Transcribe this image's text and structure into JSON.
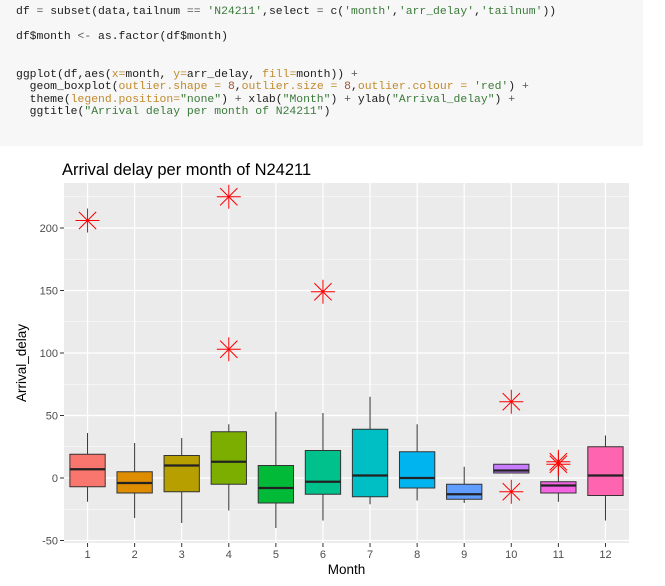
{
  "code": {
    "lines": [
      [
        {
          "t": "df ",
          "c": "kw"
        },
        {
          "t": "=",
          "c": "op"
        },
        {
          "t": " subset(data,tailnum ",
          "c": "kw"
        },
        {
          "t": "==",
          "c": "op"
        },
        {
          "t": " ",
          "c": "kw"
        },
        {
          "t": "'N24211'",
          "c": "str"
        },
        {
          "t": ",select ",
          "c": "kw"
        },
        {
          "t": "=",
          "c": "op"
        },
        {
          "t": " c(",
          "c": "kw"
        },
        {
          "t": "'month'",
          "c": "str"
        },
        {
          "t": ",",
          "c": "kw"
        },
        {
          "t": "'arr_delay'",
          "c": "str"
        },
        {
          "t": ",",
          "c": "kw"
        },
        {
          "t": "'tailnum'",
          "c": "str"
        },
        {
          "t": "))",
          "c": "kw"
        }
      ],
      [],
      [
        {
          "t": "df$month ",
          "c": "kw"
        },
        {
          "t": "<-",
          "c": "op"
        },
        {
          "t": " as.factor(df$month)",
          "c": "kw"
        }
      ],
      [],
      [],
      [
        {
          "t": "ggplot(df,aes(",
          "c": "kw"
        },
        {
          "t": "x=",
          "c": "arg"
        },
        {
          "t": "month, ",
          "c": "kw"
        },
        {
          "t": "y=",
          "c": "arg"
        },
        {
          "t": "arr_delay, ",
          "c": "kw"
        },
        {
          "t": "fill=",
          "c": "arg"
        },
        {
          "t": "month)) ",
          "c": "kw"
        },
        {
          "t": "+",
          "c": "op"
        }
      ],
      [
        {
          "t": "  geom_boxplot(",
          "c": "kw"
        },
        {
          "t": "outlier.shape =",
          "c": "arg"
        },
        {
          "t": " ",
          "c": "kw"
        },
        {
          "t": "8",
          "c": "num"
        },
        {
          "t": ",",
          "c": "kw"
        },
        {
          "t": "outlier.size =",
          "c": "arg"
        },
        {
          "t": " ",
          "c": "kw"
        },
        {
          "t": "8",
          "c": "num"
        },
        {
          "t": ",",
          "c": "kw"
        },
        {
          "t": "outlier.colour =",
          "c": "arg"
        },
        {
          "t": " ",
          "c": "kw"
        },
        {
          "t": "'red'",
          "c": "str"
        },
        {
          "t": ") ",
          "c": "kw"
        },
        {
          "t": "+",
          "c": "op"
        }
      ],
      [
        {
          "t": "  theme(",
          "c": "kw"
        },
        {
          "t": "legend.position=",
          "c": "arg"
        },
        {
          "t": "\"none\"",
          "c": "str"
        },
        {
          "t": ") ",
          "c": "kw"
        },
        {
          "t": "+",
          "c": "op"
        },
        {
          "t": " xlab(",
          "c": "kw"
        },
        {
          "t": "\"Month\"",
          "c": "str"
        },
        {
          "t": ") ",
          "c": "kw"
        },
        {
          "t": "+",
          "c": "op"
        },
        {
          "t": " ylab(",
          "c": "kw"
        },
        {
          "t": "\"Arrival_delay\"",
          "c": "str"
        },
        {
          "t": ") ",
          "c": "kw"
        },
        {
          "t": "+",
          "c": "op"
        }
      ],
      [
        {
          "t": "  ggtitle(",
          "c": "kw"
        },
        {
          "t": "\"Arrival delay per month of N24211\"",
          "c": "str"
        },
        {
          "t": ")",
          "c": "kw"
        }
      ]
    ]
  },
  "chart_data": {
    "type": "boxplot",
    "title": "Arrival delay per month of N24211",
    "xlabel": "Month",
    "ylabel": "Arrival_delay",
    "categories": [
      "1",
      "2",
      "3",
      "4",
      "5",
      "6",
      "7",
      "8",
      "9",
      "10",
      "11",
      "12"
    ],
    "ylim": [
      -52,
      236
    ],
    "yticks": [
      -50,
      0,
      50,
      100,
      150,
      200
    ],
    "grid": true,
    "legend": "none",
    "panel_color": "#ebebeb",
    "outlier_color": "#ff0000",
    "boxes": [
      {
        "x": "1",
        "fill": "#F8766D",
        "q1": -7,
        "median": 7,
        "q3": 19,
        "whisker_low": -19,
        "whisker_high": 36,
        "outliers": [
          206
        ]
      },
      {
        "x": "2",
        "fill": "#DE8C00",
        "q1": -12,
        "median": -4,
        "q3": 5,
        "whisker_low": -32,
        "whisker_high": 28,
        "outliers": []
      },
      {
        "x": "3",
        "fill": "#B79F00",
        "q1": -11,
        "median": 10,
        "q3": 18,
        "whisker_low": -36,
        "whisker_high": 32,
        "outliers": []
      },
      {
        "x": "4",
        "fill": "#7CAE00",
        "q1": -5,
        "median": 13,
        "q3": 37,
        "whisker_low": -26,
        "whisker_high": 43,
        "outliers": [
          225,
          103
        ]
      },
      {
        "x": "5",
        "fill": "#00BA38",
        "q1": -20,
        "median": -8,
        "q3": 10,
        "whisker_low": -40,
        "whisker_high": 53,
        "outliers": []
      },
      {
        "x": "6",
        "fill": "#00C08B",
        "q1": -13,
        "median": -3,
        "q3": 22,
        "whisker_low": -34,
        "whisker_high": 52,
        "outliers": [
          149
        ]
      },
      {
        "x": "7",
        "fill": "#00BFC4",
        "q1": -15,
        "median": 2,
        "q3": 39,
        "whisker_low": -21,
        "whisker_high": 65,
        "outliers": []
      },
      {
        "x": "8",
        "fill": "#00B4F0",
        "q1": -8,
        "median": 0,
        "q3": 21,
        "whisker_low": -18,
        "whisker_high": 43,
        "outliers": []
      },
      {
        "x": "9",
        "fill": "#619CFF",
        "q1": -17,
        "median": -13,
        "q3": -5,
        "whisker_low": -20,
        "whisker_high": 9,
        "outliers": []
      },
      {
        "x": "10",
        "fill": "#C77CFF",
        "q1": 4,
        "median": 6,
        "q3": 11,
        "whisker_low": 4,
        "whisker_high": 11,
        "outliers": [
          61,
          -11
        ]
      },
      {
        "x": "11",
        "fill": "#F564E3",
        "q1": -12,
        "median": -6,
        "q3": -3,
        "whisker_low": -19,
        "whisker_high": 10,
        "outliers": [
          11,
          13
        ]
      },
      {
        "x": "12",
        "fill": "#FF64B0",
        "q1": -14,
        "median": 2,
        "q3": 25,
        "whisker_low": -34,
        "whisker_high": 34,
        "outliers": []
      }
    ]
  }
}
